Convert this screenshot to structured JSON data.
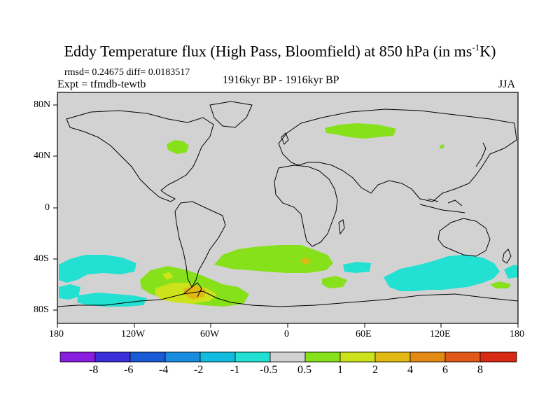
{
  "title": {
    "main": "Eddy Temperature flux (High Pass, Bloomfield) at 850 hPa (in ms",
    "sup": "-1",
    "tail": "K)"
  },
  "stats": "rmsd= 0.24675 diff= 0.0183517",
  "expt": "Expt = tfmdb-tewtb",
  "period": "1916kyr BP - 1916kyr BP",
  "season": "JJA",
  "lat_ticks": [
    "80N",
    "40N",
    "0",
    "40S",
    "80S"
  ],
  "lon_ticks": [
    "180",
    "120W",
    "60W",
    "0",
    "60E",
    "120E",
    "180"
  ],
  "colorbar": {
    "labels": [
      "-8",
      "-6",
      "-4",
      "-2",
      "-1",
      "-0.5",
      "0.5",
      "1",
      "2",
      "4",
      "6",
      "8"
    ],
    "colors": [
      "#8a1ee0",
      "#3a2ed8",
      "#1a5ad6",
      "#1a8ce0",
      "#12bce0",
      "#22e0d2",
      "#d2d2d2",
      "#86e01a",
      "#cce21a",
      "#e2b812",
      "#e28a14",
      "#e2581a",
      "#d82a12"
    ]
  },
  "colors": {
    "ocean": "#d2d2d2",
    "cyan": "#22e0d2",
    "green": "#86e01a",
    "yellow": "#cce21a",
    "orange": "#e2b812"
  }
}
